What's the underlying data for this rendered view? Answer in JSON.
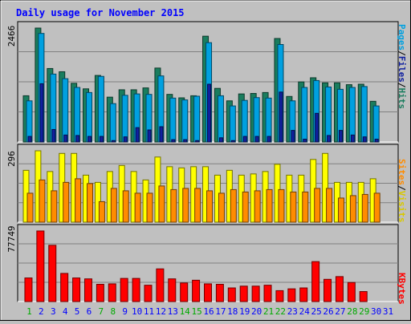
{
  "chart_data": {
    "type": "bar",
    "title": "Daily usage for November 2015",
    "categories": [
      "1",
      "2",
      "3",
      "4",
      "5",
      "6",
      "7",
      "8",
      "9",
      "10",
      "11",
      "12",
      "13",
      "14",
      "15",
      "16",
      "17",
      "18",
      "19",
      "20",
      "21",
      "22",
      "23",
      "24",
      "25",
      "26",
      "27",
      "28",
      "29",
      "30",
      "31"
    ],
    "weekend_days": [
      "1",
      "7",
      "8",
      "14",
      "15",
      "21",
      "22",
      "28",
      "29"
    ],
    "panels": [
      {
        "id": "hits-files-pages",
        "max_label": "2466",
        "ymax": 2466,
        "series": [
          {
            "name": "Hits",
            "color": "#1a7d5e",
            "values": [
              1000,
              2466,
              1590,
              1520,
              1270,
              1150,
              1440,
              970,
              1130,
              1130,
              1170,
              1600,
              1030,
              955,
              1000,
              2290,
              1160,
              890,
              1040,
              1050,
              1070,
              2240,
              985,
              1300,
              1390,
              1280,
              1280,
              1240,
              1250,
              880,
              0
            ]
          },
          {
            "name": "Files",
            "color": "#00a0e0",
            "values": [
              890,
              2350,
              1470,
              1370,
              1180,
              1070,
              1420,
              830,
              1010,
              1040,
              1030,
              1430,
              950,
              910,
              990,
              2150,
              1000,
              780,
              900,
              960,
              950,
              2110,
              890,
              1180,
              1330,
              1190,
              1140,
              1180,
              1200,
              780,
              0
            ]
          },
          {
            "name": "Pages",
            "color": "#1020a0",
            "values": [
              120,
              1260,
              270,
              150,
              140,
              120,
              120,
              30,
              110,
              310,
              260,
              330,
              50,
              50,
              30,
              1250,
              90,
              30,
              120,
              120,
              120,
              1080,
              250,
              60,
              620,
              140,
              250,
              150,
              110,
              60,
              0
            ]
          }
        ]
      },
      {
        "id": "visits-sites",
        "max_label": "296",
        "ymax": 296,
        "series": [
          {
            "name": "Visits",
            "color": "#ffff00",
            "values": [
              215,
              296,
              210,
              285,
              285,
              195,
              165,
              210,
              235,
              210,
              175,
              270,
              230,
              225,
              230,
              230,
              195,
              215,
              195,
              200,
              210,
              240,
              195,
              195,
              260,
              285,
              165,
              165,
              165,
              180,
              0
            ]
          },
          {
            "name": "Sites",
            "color": "#ff8c00",
            "values": [
              120,
              175,
              130,
              165,
              180,
              160,
              85,
              140,
              130,
              120,
              120,
              150,
              135,
              140,
              140,
              130,
              120,
              135,
              125,
              130,
              135,
              135,
              125,
              125,
              140,
              140,
              100,
              110,
              115,
              120,
              0
            ]
          }
        ]
      },
      {
        "id": "kbytes",
        "max_label": "77749",
        "ymax": 77749,
        "series": [
          {
            "name": "KBytes",
            "color": "#ff0000",
            "values": [
              26000,
              77749,
              62000,
              31000,
              26000,
              25000,
              19000,
              19500,
              25500,
              25500,
              18000,
              36000,
              25000,
              20500,
              23500,
              19500,
              19000,
              15000,
              17000,
              17000,
              18000,
              12000,
              14000,
              15000,
              44000,
              24500,
              27500,
              21000,
              11000,
              0,
              0
            ]
          }
        ]
      }
    ]
  },
  "legend": {
    "hits_label": "Hits",
    "files_label": "Files",
    "pages_label": "Pages",
    "visits_label": "Visits",
    "sites_label": "Sites",
    "kbytes_label": "KBytes",
    "separator": "/"
  },
  "colors": {
    "background": "#c0c0c0",
    "panel_bg": "#c0c0c0",
    "title": "#0000ff",
    "weekday": "#0000ff",
    "weekend": "#00aa00",
    "grid": "#808080"
  }
}
